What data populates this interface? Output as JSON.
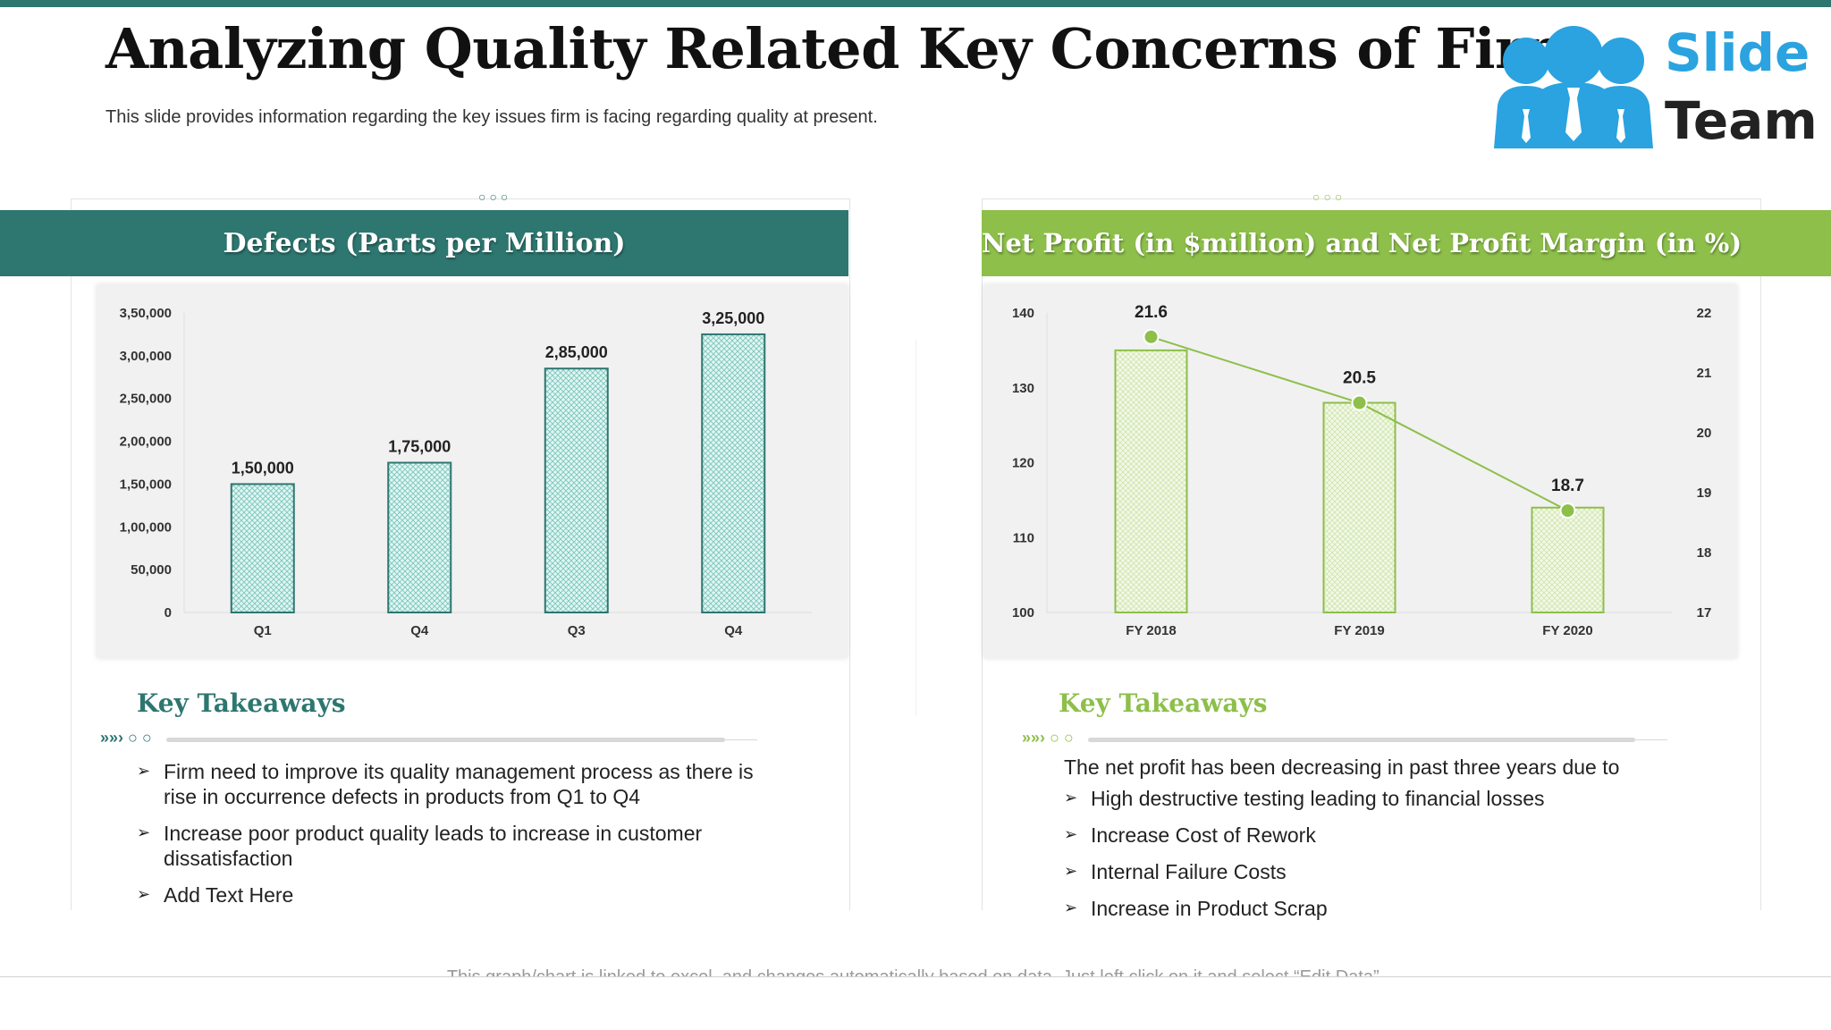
{
  "page": {
    "title": "Analyzing Quality Related Key Concerns of Firm",
    "subtitle": "This slide provides information regarding the key issues firm is facing regarding quality at present.",
    "footer_note": "This graph/chart is linked to excel, and changes automatically based on data. Just left click on it and select “Edit Data”."
  },
  "logo": {
    "line1": "Slide",
    "line2": "Team",
    "icon": "team-people-icon"
  },
  "colors": {
    "teal": "#2e7670",
    "teal_bar": "#6fc9bf",
    "green": "#8dbf4a",
    "green_bar": "#b5dc86",
    "logo_blue": "#2aa3e0"
  },
  "left_panel": {
    "header": "Defects (Parts per Million)",
    "takeaways_title": "Key Takeaways",
    "bullets": [
      "Firm need to improve its quality management process as there is rise in occurrence defects in products from Q1 to Q4",
      "Increase poor product quality leads to increase in customer dissatisfaction",
      "Add Text Here"
    ]
  },
  "right_panel": {
    "header": "Net Profit (in $million) and Net Profit Margin (in %)",
    "takeaways_title": "Key Takeaways",
    "intro": "The net profit has been decreasing in past three years due to",
    "bullets": [
      "High destructive testing leading to financial losses",
      "Increase Cost of Rework",
      "Internal Failure Costs",
      "Increase in Product Scrap"
    ]
  },
  "chart_data": [
    {
      "type": "bar",
      "title": "Defects (Parts per Million)",
      "categories": [
        "Q1",
        "Q4",
        "Q3",
        "Q4"
      ],
      "values": [
        150000,
        175000,
        285000,
        325000
      ],
      "data_labels": [
        "1,50,000",
        "1,75,000",
        "2,85,000",
        "3,25,000"
      ],
      "ylim": [
        0,
        350000
      ],
      "yticks": [
        0,
        50000,
        100000,
        150000,
        200000,
        250000,
        300000,
        350000
      ],
      "ytick_labels": [
        "0",
        "50,000",
        "1,00,000",
        "1,50,000",
        "2,00,000",
        "2,50,000",
        "3,00,000",
        "3,50,000"
      ],
      "grid": false
    },
    {
      "type": "bar",
      "title": "Net Profit (in $million) and Net Profit Margin (in %)",
      "categories": [
        "FY 2018",
        "FY 2019",
        "FY 2020"
      ],
      "series": [
        {
          "kind": "bar",
          "axis": "left",
          "values": [
            135,
            128,
            114
          ]
        },
        {
          "kind": "line",
          "axis": "right",
          "values": [
            21.6,
            20.5,
            18.7
          ],
          "data_labels": [
            "21.6",
            "20.5",
            "18.7"
          ]
        }
      ],
      "ylim_left": [
        100,
        140
      ],
      "yticks_left": [
        100,
        110,
        120,
        130,
        140
      ],
      "ylim_right": [
        17,
        22
      ],
      "yticks_right": [
        17,
        18,
        19,
        20,
        21,
        22
      ],
      "grid": false
    }
  ]
}
